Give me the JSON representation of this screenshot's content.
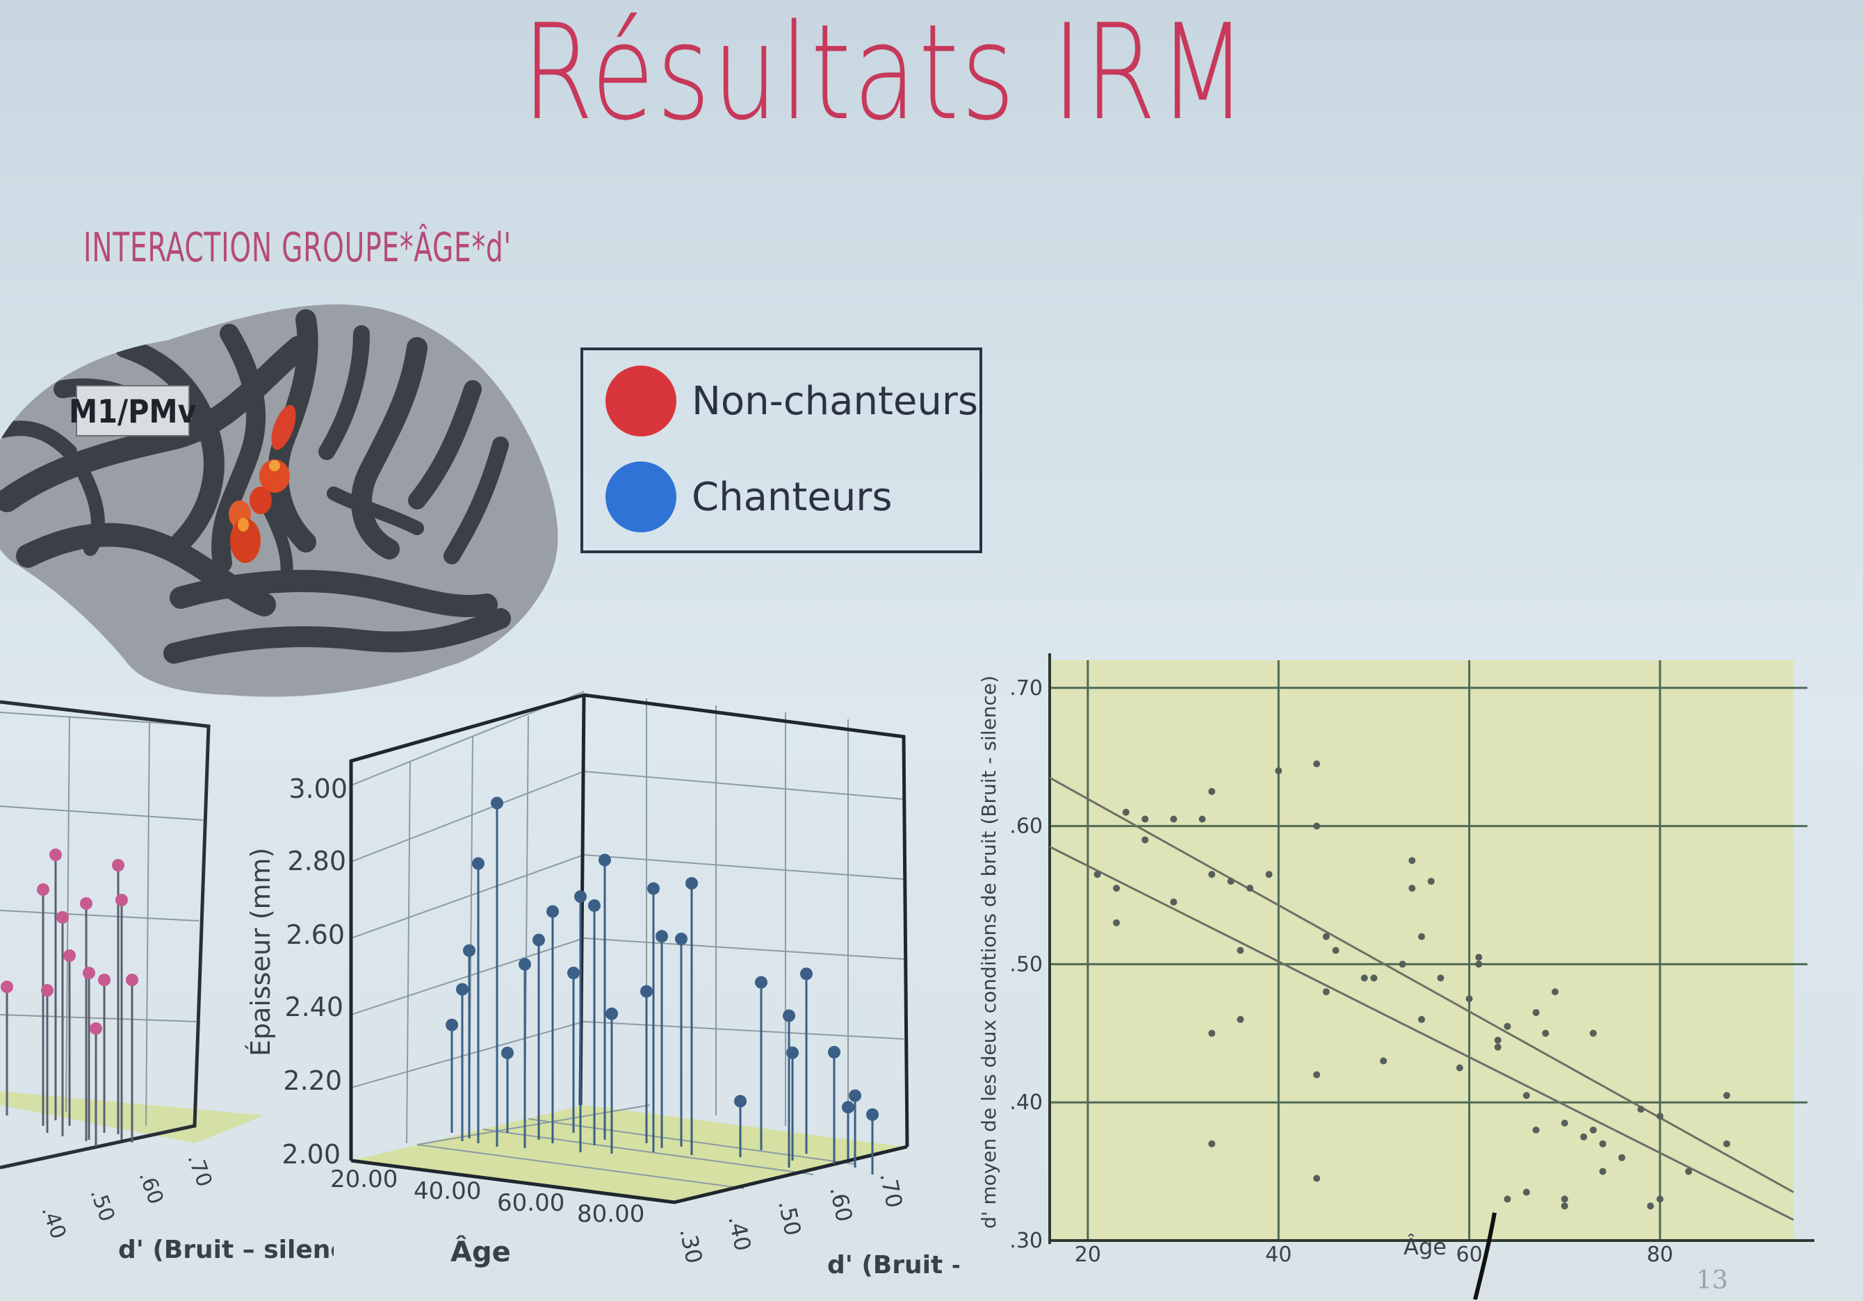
{
  "slide": {
    "title": "Résultats IRM",
    "subtitle": "INTERACTION GROUPE*ÂGE*d'",
    "page_number": "13"
  },
  "brain": {
    "region_label": "M1/PMv"
  },
  "legend": {
    "items": [
      {
        "label": "Non-chanteurs",
        "color": "#d8363c"
      },
      {
        "label": "Chanteurs",
        "color": "#2f73d6"
      }
    ]
  },
  "colors": {
    "title": "#c7385a",
    "subtitle": "#b54a78",
    "non_chanteurs": "#d8363c",
    "chanteurs": "#2f73d6",
    "stem_blue": "#3b5f86",
    "stem_pink": "#c85a8f",
    "floor": "#d4df9a"
  },
  "chart_data": [
    {
      "type": "scatter",
      "name": "3d-left",
      "group": "Non-chanteurs",
      "xlabel": "d' (Bruit – silence)",
      "x_ticks": [
        ".40",
        ".50",
        ".60",
        ".70"
      ],
      "note": "partially cropped 3D stem plot",
      "points": []
    },
    {
      "type": "scatter",
      "name": "3d-mid",
      "group": "Chanteurs",
      "zlabel": "Épaisseur (mm)",
      "z_ticks": [
        "2.00",
        "2.20",
        "2.40",
        "2.60",
        "2.80",
        "3.00"
      ],
      "zlim": [
        2.0,
        3.0
      ],
      "xlabel": "Âge",
      "x_ticks": [
        "20.00",
        "40.00",
        "60.00",
        "80.00"
      ],
      "ylabel": "d' (Bruit – silence)",
      "y_ticks": [
        ".30",
        ".40",
        ".50",
        ".60",
        ".70"
      ],
      "thickness_values": [
        2.27,
        2.38,
        2.47,
        2.7,
        2.86,
        2.2,
        2.46,
        2.5,
        2.58,
        2.4,
        2.64,
        2.6,
        2.7,
        2.35,
        2.38,
        2.66,
        2.53,
        2.52,
        2.68,
        2.14,
        2.42,
        2.27,
        2.38,
        2.45,
        2.28,
        2.13,
        2.18,
        2.15
      ]
    },
    {
      "type": "scatter",
      "name": "scatter-age-dprime",
      "xlabel": "Âge",
      "ylabel": "d' moyen de les deux conditions de bruit (Bruit - silence)",
      "x_ticks": [
        "20",
        "40",
        "60",
        "80"
      ],
      "y_ticks": [
        ".30",
        ".40",
        ".50",
        ".60",
        ".70"
      ],
      "xlim": [
        16,
        94
      ],
      "ylim": [
        0.3,
        0.72
      ],
      "points": [
        [
          21,
          0.565
        ],
        [
          23,
          0.555
        ],
        [
          23,
          0.53
        ],
        [
          24,
          0.61
        ],
        [
          26,
          0.59
        ],
        [
          26,
          0.605
        ],
        [
          29,
          0.605
        ],
        [
          29,
          0.545
        ],
        [
          32,
          0.605
        ],
        [
          33,
          0.565
        ],
        [
          33,
          0.625
        ],
        [
          33,
          0.45
        ],
        [
          33,
          0.37
        ],
        [
          35,
          0.56
        ],
        [
          36,
          0.51
        ],
        [
          36,
          0.46
        ],
        [
          37,
          0.555
        ],
        [
          39,
          0.565
        ],
        [
          40,
          0.64
        ],
        [
          44,
          0.645
        ],
        [
          44,
          0.6
        ],
        [
          44,
          0.42
        ],
        [
          44,
          0.345
        ],
        [
          45,
          0.52
        ],
        [
          45,
          0.48
        ],
        [
          46,
          0.51
        ],
        [
          49,
          0.49
        ],
        [
          50,
          0.49
        ],
        [
          51,
          0.43
        ],
        [
          53,
          0.5
        ],
        [
          54,
          0.575
        ],
        [
          54,
          0.555
        ],
        [
          55,
          0.52
        ],
        [
          55,
          0.46
        ],
        [
          56,
          0.56
        ],
        [
          57,
          0.49
        ],
        [
          59,
          0.425
        ],
        [
          60,
          0.475
        ],
        [
          61,
          0.5
        ],
        [
          61,
          0.505
        ],
        [
          63,
          0.445
        ],
        [
          63,
          0.44
        ],
        [
          64,
          0.455
        ],
        [
          64,
          0.33
        ],
        [
          66,
          0.405
        ],
        [
          66,
          0.335
        ],
        [
          67,
          0.465
        ],
        [
          67,
          0.38
        ],
        [
          68,
          0.45
        ],
        [
          69,
          0.48
        ],
        [
          70,
          0.385
        ],
        [
          70,
          0.325
        ],
        [
          70,
          0.33
        ],
        [
          72,
          0.375
        ],
        [
          73,
          0.45
        ],
        [
          73,
          0.38
        ],
        [
          74,
          0.37
        ],
        [
          74,
          0.35
        ],
        [
          76,
          0.36
        ],
        [
          78,
          0.395
        ],
        [
          79,
          0.325
        ],
        [
          80,
          0.39
        ],
        [
          80,
          0.33
        ],
        [
          83,
          0.35
        ],
        [
          87,
          0.405
        ],
        [
          87,
          0.37
        ]
      ],
      "lines": [
        {
          "x": [
            16,
            94
          ],
          "y": [
            0.635,
            0.335
          ]
        },
        {
          "x": [
            16,
            94
          ],
          "y": [
            0.585,
            0.315
          ]
        }
      ]
    }
  ]
}
